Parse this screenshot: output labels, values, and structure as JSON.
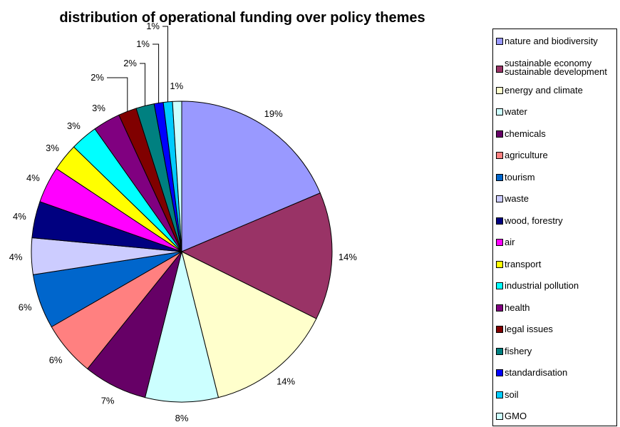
{
  "chart_data": {
    "type": "pie",
    "title": "distribution of operational funding over policy themes",
    "slices": [
      {
        "label": "nature and biodiversity",
        "value": 19,
        "display": "19%",
        "color": "#9999FF"
      },
      {
        "label": "sustainable economy sustainable development",
        "value": 14,
        "display": "14%",
        "color": "#993366"
      },
      {
        "label": "energy and climate",
        "value": 14,
        "display": "14%",
        "color": "#FFFFCC"
      },
      {
        "label": "water",
        "value": 8,
        "display": "8%",
        "color": "#CCFFFF"
      },
      {
        "label": "chemicals",
        "value": 7,
        "display": "7%",
        "color": "#660066"
      },
      {
        "label": "agriculture",
        "value": 6,
        "display": "6%",
        "color": "#FF8080"
      },
      {
        "label": "tourism",
        "value": 6,
        "display": "6%",
        "color": "#0066CC"
      },
      {
        "label": "waste",
        "value": 4,
        "display": "4%",
        "color": "#CCCCFF"
      },
      {
        "label": "wood, forestry",
        "value": 4,
        "display": "4%",
        "color": "#000080"
      },
      {
        "label": "air",
        "value": 4,
        "display": "4%",
        "color": "#FF00FF"
      },
      {
        "label": "transport",
        "value": 3,
        "display": "3%",
        "color": "#FFFF00"
      },
      {
        "label": "industrial pollution",
        "value": 3,
        "display": "3%",
        "color": "#00FFFF"
      },
      {
        "label": "health",
        "value": 3,
        "display": "3%",
        "color": "#800080"
      },
      {
        "label": "legal issues",
        "value": 2,
        "display": "2%",
        "color": "#800000"
      },
      {
        "label": "fishery",
        "value": 2,
        "display": "2%",
        "color": "#008080"
      },
      {
        "label": "standardisation",
        "value": 1,
        "display": "1%",
        "color": "#0000FF"
      },
      {
        "label": "soil",
        "value": 1,
        "display": "1%",
        "color": "#00CCFF"
      },
      {
        "label": "GMO",
        "value": 1,
        "display": "1%",
        "color": "#CCFFFF"
      }
    ],
    "legend": {
      "position": "right",
      "entries": [
        [
          "nature and biodiversity"
        ],
        [
          "sustainable economy",
          "sustainable development"
        ],
        [
          "energy and climate"
        ],
        [
          "water"
        ],
        [
          "chemicals"
        ],
        [
          "agriculture"
        ],
        [
          "tourism"
        ],
        [
          "waste"
        ],
        [
          "wood, forestry"
        ],
        [
          "air"
        ],
        [
          "transport"
        ],
        [
          "industrial pollution"
        ],
        [
          "health"
        ],
        [
          "legal issues"
        ],
        [
          "fishery"
        ],
        [
          "standardisation"
        ],
        [
          "soil"
        ],
        [
          "GMO"
        ]
      ]
    }
  }
}
